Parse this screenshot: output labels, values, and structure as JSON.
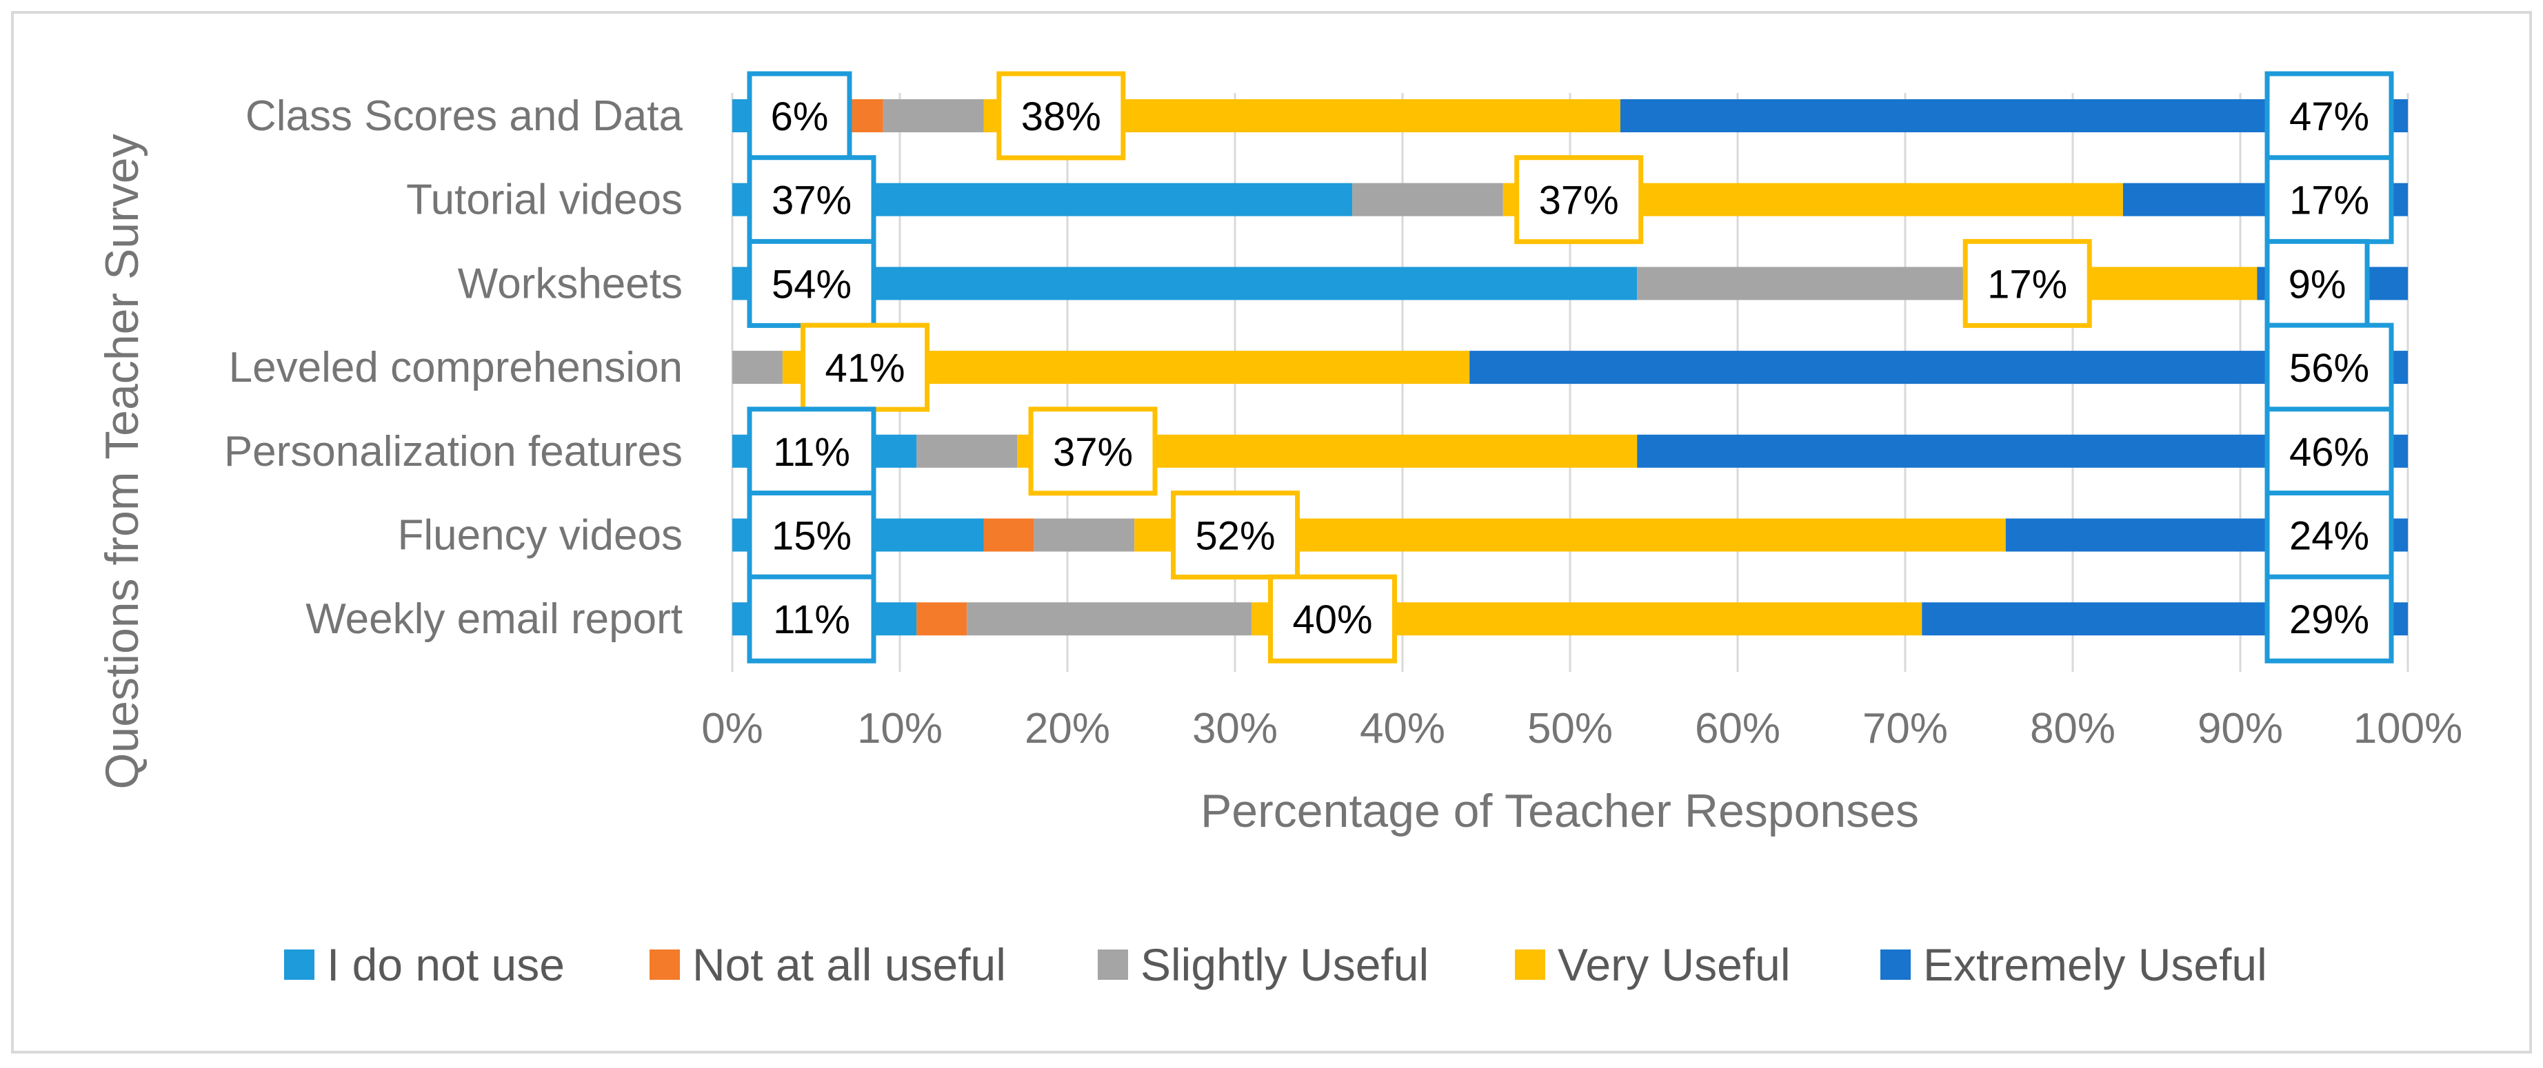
{
  "chart_data": {
    "type": "bar",
    "orientation": "horizontal",
    "stacked": "percent",
    "title": "",
    "xlabel": "Percentage of Teacher Responses",
    "ylabel": "Questions from Teacher Survey",
    "xlim": [
      0,
      100
    ],
    "x_ticks": [
      "0%",
      "10%",
      "20%",
      "30%",
      "40%",
      "50%",
      "60%",
      "70%",
      "80%",
      "90%",
      "100%"
    ],
    "grid": true,
    "legend_position": "bottom",
    "categories": [
      "Class Scores and Data",
      "Tutorial videos",
      "Worksheets",
      "Leveled comprehension",
      "Personalization features",
      "Fluency videos",
      "Weekly email report"
    ],
    "series": [
      {
        "name": "I do not use",
        "color": "#1E9BDA",
        "values": [
          6,
          37,
          54,
          0,
          11,
          15,
          11
        ]
      },
      {
        "name": "Not at all useful",
        "color": "#F47B2A",
        "values": [
          3,
          0,
          0,
          0,
          0,
          3,
          3
        ]
      },
      {
        "name": "Slightly Useful",
        "color": "#A5A5A5",
        "values": [
          6,
          9,
          20,
          3,
          6,
          6,
          17
        ]
      },
      {
        "name": "Very Useful",
        "color": "#FFC000",
        "values": [
          38,
          37,
          17,
          41,
          37,
          52,
          40
        ]
      },
      {
        "name": "Extremely Useful",
        "color": "#1874CD",
        "values": [
          47,
          17,
          9,
          56,
          46,
          24,
          29
        ]
      }
    ],
    "data_labels": [
      {
        "category": 0,
        "series": 0,
        "text": "6%"
      },
      {
        "category": 0,
        "series": 3,
        "text": "38%"
      },
      {
        "category": 0,
        "series": 4,
        "text": "47%"
      },
      {
        "category": 1,
        "series": 0,
        "text": "37%"
      },
      {
        "category": 1,
        "series": 3,
        "text": "37%"
      },
      {
        "category": 1,
        "series": 4,
        "text": "17%"
      },
      {
        "category": 2,
        "series": 0,
        "text": "54%"
      },
      {
        "category": 2,
        "series": 3,
        "text": "17%"
      },
      {
        "category": 2,
        "series": 4,
        "text": "9%"
      },
      {
        "category": 3,
        "series": 3,
        "text": "41%"
      },
      {
        "category": 3,
        "series": 4,
        "text": "56%"
      },
      {
        "category": 4,
        "series": 0,
        "text": "11%"
      },
      {
        "category": 4,
        "series": 3,
        "text": "37%"
      },
      {
        "category": 4,
        "series": 4,
        "text": "46%"
      },
      {
        "category": 5,
        "series": 0,
        "text": "15%"
      },
      {
        "category": 5,
        "series": 3,
        "text": "52%"
      },
      {
        "category": 5,
        "series": 4,
        "text": "24%"
      },
      {
        "category": 6,
        "series": 0,
        "text": "11%"
      },
      {
        "category": 6,
        "series": 3,
        "text": "40%"
      },
      {
        "category": 6,
        "series": 4,
        "text": "29%"
      }
    ]
  }
}
